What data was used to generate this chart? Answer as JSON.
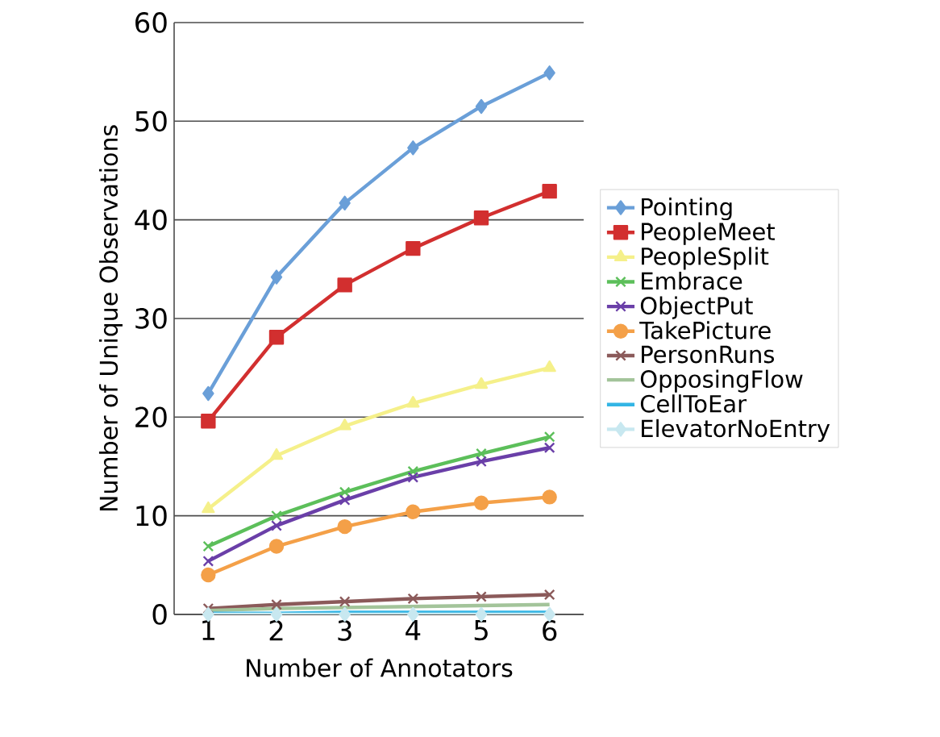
{
  "chart_data": {
    "type": "line",
    "xlabel": "Number of Annotators",
    "ylabel": "Number of Unique Observations",
    "categories": [
      "1",
      "2",
      "3",
      "4",
      "5",
      "6"
    ],
    "ylim": [
      0,
      60
    ],
    "yticks": [
      0,
      10,
      20,
      30,
      40,
      50,
      60
    ],
    "grid": "y",
    "legend": "right",
    "series": [
      {
        "name": "Pointing",
        "color": "#6a9fd8",
        "marker": "diamond",
        "values": [
          22.4,
          34.2,
          41.7,
          47.3,
          51.5,
          54.9
        ]
      },
      {
        "name": "PeopleMeet",
        "color": "#d22f2f",
        "marker": "square",
        "values": [
          19.6,
          28.1,
          33.4,
          37.1,
          40.2,
          42.9
        ]
      },
      {
        "name": "PeopleSplit",
        "color": "#f5f08a",
        "marker": "triangle",
        "values": [
          10.7,
          16.1,
          19.1,
          21.4,
          23.3,
          25.0
        ]
      },
      {
        "name": "Embrace",
        "color": "#5cbf5a",
        "marker": "cross",
        "values": [
          6.9,
          10.0,
          12.4,
          14.5,
          16.3,
          18.0
        ]
      },
      {
        "name": "ObjectPut",
        "color": "#6a3fa8",
        "marker": "cross",
        "values": [
          5.4,
          9.0,
          11.6,
          13.9,
          15.5,
          16.9
        ]
      },
      {
        "name": "TakePicture",
        "color": "#f4a048",
        "marker": "circle",
        "values": [
          4.0,
          6.9,
          8.9,
          10.4,
          11.3,
          11.9
        ]
      },
      {
        "name": "PersonRuns",
        "color": "#8b5a5a",
        "marker": "cross",
        "values": [
          0.6,
          1.0,
          1.3,
          1.6,
          1.8,
          2.0
        ]
      },
      {
        "name": "OpposingFlow",
        "color": "#a3c49a",
        "marker": "none",
        "values": [
          0.4,
          0.6,
          0.7,
          0.8,
          0.9,
          1.0
        ]
      },
      {
        "name": "CellToEar",
        "color": "#33b5e5",
        "marker": "none",
        "values": [
          0.1,
          0.1,
          0.2,
          0.2,
          0.2,
          0.2
        ]
      },
      {
        "name": "ElevatorNoEntry",
        "color": "#c8e8f0",
        "marker": "diamond",
        "values": [
          0,
          0,
          0,
          0,
          0,
          0
        ]
      }
    ]
  }
}
